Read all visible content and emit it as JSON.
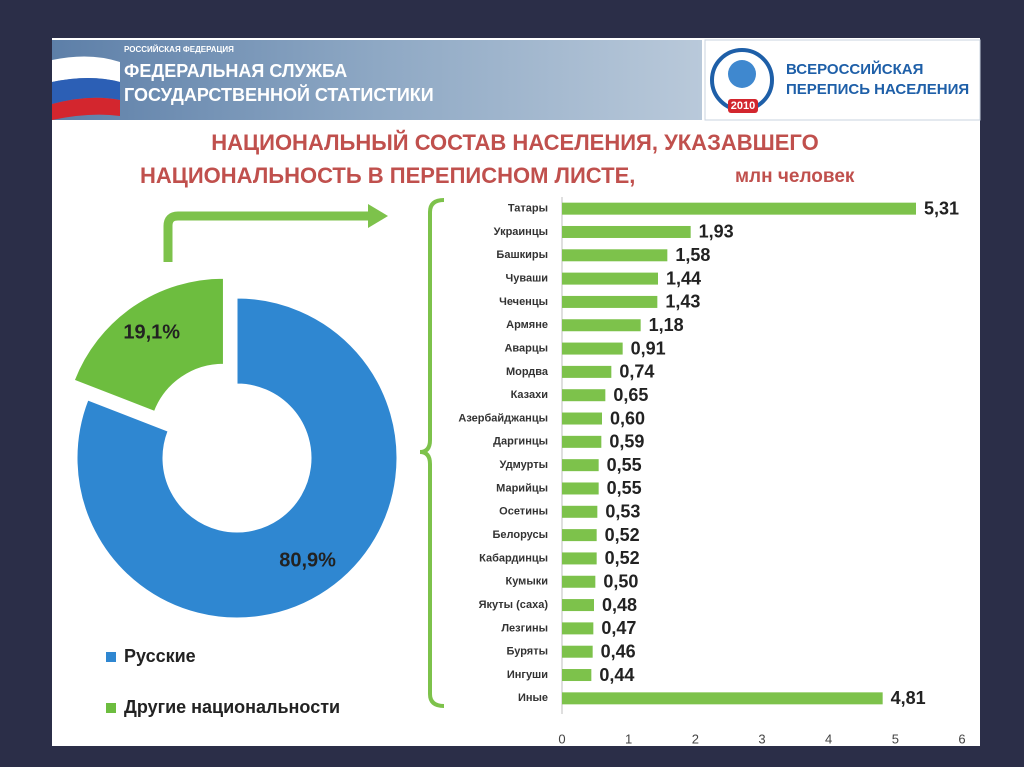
{
  "header": {
    "country": "РОССИЙСКАЯ ФЕДЕРАЦИЯ",
    "agency_line1": "ФЕДЕРАЛЬНАЯ СЛУЖБА",
    "agency_line2": "ГОСУДАРСТВЕННОЙ СТАТИСТИКИ",
    "census_line1": "ВСЕРОССИЙСКАЯ",
    "census_line2": "ПЕРЕПИСЬ НАСЕЛЕНИЯ",
    "census_year": "2010"
  },
  "slide_title": {
    "line1": "НАЦИОНАЛЬНЫЙ СОСТАВ НАСЕЛЕНИЯ, УКАЗАВШЕГО",
    "line2": "НАЦИОНАЛЬНОСТЬ В ПЕРЕПИСНОМ ЛИСТЕ,",
    "unit": "млн человек"
  },
  "chart_data": [
    {
      "type": "pie",
      "donut": true,
      "categories": [
        "Русские",
        "Другие национальности"
      ],
      "values": [
        80.9,
        19.1
      ],
      "value_labels": [
        "80,9%",
        "19,1%"
      ],
      "colors": [
        "#2f87d1",
        "#6dbd3f"
      ],
      "legend": "bottom"
    },
    {
      "type": "bar",
      "orientation": "horizontal",
      "categories": [
        "Татары",
        "Украинцы",
        "Башкиры",
        "Чуваши",
        "Чеченцы",
        "Армяне",
        "Аварцы",
        "Мордва",
        "Казахи",
        "Азербайджанцы",
        "Даргинцы",
        "Удмурты",
        "Марийцы",
        "Осетины",
        "Белорусы",
        "Кабардинцы",
        "Кумыки",
        "Якуты (саха)",
        "Лезгины",
        "Буряты",
        "Ингуши",
        "Иные"
      ],
      "values": [
        5.31,
        1.93,
        1.58,
        1.44,
        1.43,
        1.18,
        0.91,
        0.74,
        0.65,
        0.6,
        0.59,
        0.55,
        0.55,
        0.53,
        0.52,
        0.52,
        0.5,
        0.48,
        0.47,
        0.46,
        0.44,
        4.81
      ],
      "value_labels": [
        "5,31",
        "1,93",
        "1,58",
        "1,44",
        "1,43",
        "1,18",
        "0,91",
        "0,74",
        "0,65",
        "0,60",
        "0,59",
        "0,55",
        "0,55",
        "0,53",
        "0,52",
        "0,52",
        "0,50",
        "0,48",
        "0,47",
        "0,46",
        "0,44",
        "4,81"
      ],
      "color": "#7dc24b",
      "xlim": [
        0,
        6
      ],
      "xticks": [
        0,
        1,
        2,
        3,
        4,
        5,
        6
      ],
      "grid": false
    }
  ]
}
